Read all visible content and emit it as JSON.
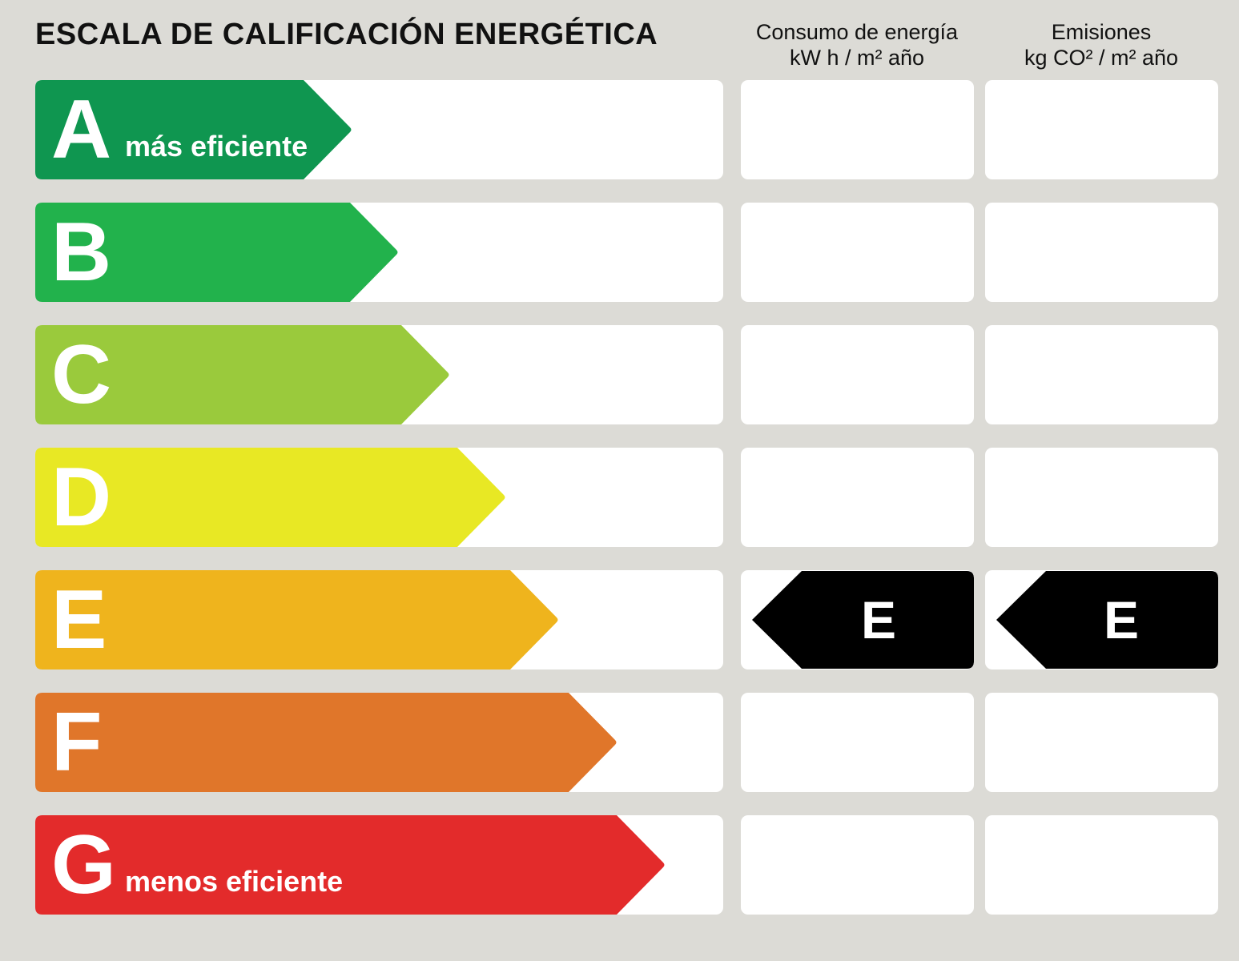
{
  "title": "ESCALA DE CALIFICACIÓN ENERGÉTICA",
  "columns": {
    "consumo": {
      "line1": "Consumo de energía",
      "line2": "kW h / m² año"
    },
    "emisiones": {
      "line1": "Emisiones",
      "line2": "kg CO² / m² año"
    }
  },
  "classes": [
    {
      "letter": "A",
      "label": "más eficiente",
      "color": "#0f9650"
    },
    {
      "letter": "B",
      "label": "",
      "color": "#22b24c"
    },
    {
      "letter": "C",
      "label": "",
      "color": "#9aca3c"
    },
    {
      "letter": "D",
      "label": "",
      "color": "#e8e824"
    },
    {
      "letter": "E",
      "label": "",
      "color": "#efb41d"
    },
    {
      "letter": "F",
      "label": "",
      "color": "#e0762a"
    },
    {
      "letter": "G",
      "label": "menos eficiente",
      "color": "#e32b2b"
    }
  ],
  "rating": {
    "consumo": "E",
    "emisiones": "E",
    "marker_color": "#000000"
  }
}
